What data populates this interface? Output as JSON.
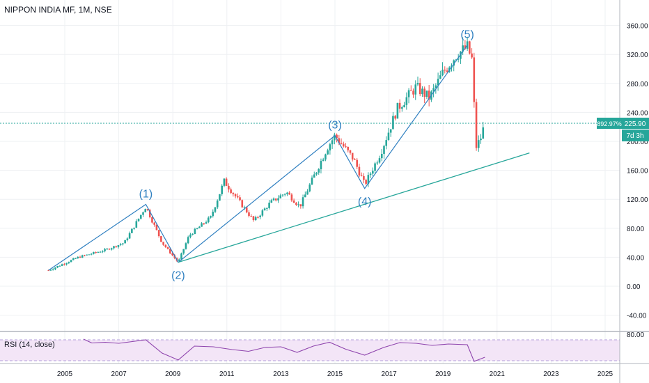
{
  "header": {
    "title": "NIPPON INDIA MF, 1M, NSE"
  },
  "rsi": {
    "label": "RSI (14, close)",
    "level_label": "80.00"
  },
  "price_tags": {
    "percent": "892.97%",
    "price": "225.90",
    "countdown": "7d 3h"
  },
  "colors": {
    "up": "#26a69a",
    "down": "#ef5350",
    "wave": "#2e7fc0",
    "trend": "#26a69a",
    "rsi": "#8e44ad",
    "rsi_fill": "#f3e5f7",
    "tag": "#26a69a"
  },
  "chart_data": {
    "type": "candlestick",
    "title": "NIPPON INDIA MF, 1M, NSE",
    "x_ticks": [
      "2005",
      "2007",
      "2009",
      "2011",
      "2013",
      "2015",
      "2017",
      "2019",
      "2021",
      "2023",
      "2025"
    ],
    "y_ticks": [
      "360.00",
      "320.00",
      "280.00",
      "240.00",
      "200.00",
      "160.00",
      "120.00",
      "80.00",
      "40.00",
      "0.00",
      "-40.00"
    ],
    "ylim": [
      -60,
      390
    ],
    "last_price": 225.9,
    "percent_change": "892.97%",
    "wave_labels": [
      {
        "label": "(1)",
        "x": 2008.0,
        "y": 113
      },
      {
        "label": "(2)",
        "x": 2009.2,
        "y": 33
      },
      {
        "label": "(3)",
        "x": 2015.0,
        "y": 208
      },
      {
        "label": "(4)",
        "x": 2016.1,
        "y": 135
      },
      {
        "label": "(5)",
        "x": 2019.9,
        "y": 333
      }
    ],
    "wave_path": [
      [
        2004.4,
        22
      ],
      [
        2008.0,
        113
      ],
      [
        2009.2,
        33
      ],
      [
        2015.0,
        208
      ],
      [
        2016.1,
        135
      ],
      [
        2019.9,
        333
      ]
    ],
    "trendline": [
      [
        2009.2,
        33
      ],
      [
        2022.2,
        184
      ]
    ],
    "anchors": [
      [
        2004.4,
        22
      ],
      [
        2005.5,
        40
      ],
      [
        2006.5,
        50
      ],
      [
        2007.2,
        60
      ],
      [
        2008.0,
        110
      ],
      [
        2008.6,
        60
      ],
      [
        2009.2,
        33
      ],
      [
        2009.6,
        70
      ],
      [
        2010.4,
        95
      ],
      [
        2010.9,
        145
      ],
      [
        2011.6,
        110
      ],
      [
        2012.0,
        90
      ],
      [
        2012.6,
        115
      ],
      [
        2013.2,
        130
      ],
      [
        2013.7,
        110
      ],
      [
        2014.2,
        150
      ],
      [
        2014.7,
        190
      ],
      [
        2015.0,
        208
      ],
      [
        2015.7,
        175
      ],
      [
        2016.1,
        140
      ],
      [
        2016.7,
        185
      ],
      [
        2017.3,
        245
      ],
      [
        2018.0,
        275
      ],
      [
        2018.5,
        260
      ],
      [
        2019.0,
        295
      ],
      [
        2019.5,
        320
      ],
      [
        2019.9,
        330
      ],
      [
        2020.1,
        310
      ],
      [
        2020.2,
        190
      ],
      [
        2020.4,
        205
      ],
      [
        2020.55,
        226
      ]
    ],
    "rsi_values": [
      [
        2005.7,
        82
      ],
      [
        2006.0,
        71
      ],
      [
        2006.5,
        73
      ],
      [
        2007.0,
        70
      ],
      [
        2007.5,
        75
      ],
      [
        2008.0,
        80
      ],
      [
        2008.6,
        42
      ],
      [
        2009.2,
        22
      ],
      [
        2009.8,
        62
      ],
      [
        2010.5,
        60
      ],
      [
        2011.2,
        52
      ],
      [
        2011.8,
        47
      ],
      [
        2012.4,
        58
      ],
      [
        2013.0,
        60
      ],
      [
        2013.6,
        44
      ],
      [
        2014.2,
        62
      ],
      [
        2014.8,
        73
      ],
      [
        2015.4,
        53
      ],
      [
        2016.1,
        36
      ],
      [
        2016.8,
        58
      ],
      [
        2017.4,
        72
      ],
      [
        2018.0,
        70
      ],
      [
        2018.6,
        64
      ],
      [
        2019.2,
        68
      ],
      [
        2019.9,
        66
      ],
      [
        2020.15,
        18
      ],
      [
        2020.35,
        24
      ],
      [
        2020.55,
        30
      ]
    ],
    "rsi_ylim": [
      10,
      90
    ],
    "rsi_y_ticks": [
      "80.00"
    ]
  }
}
